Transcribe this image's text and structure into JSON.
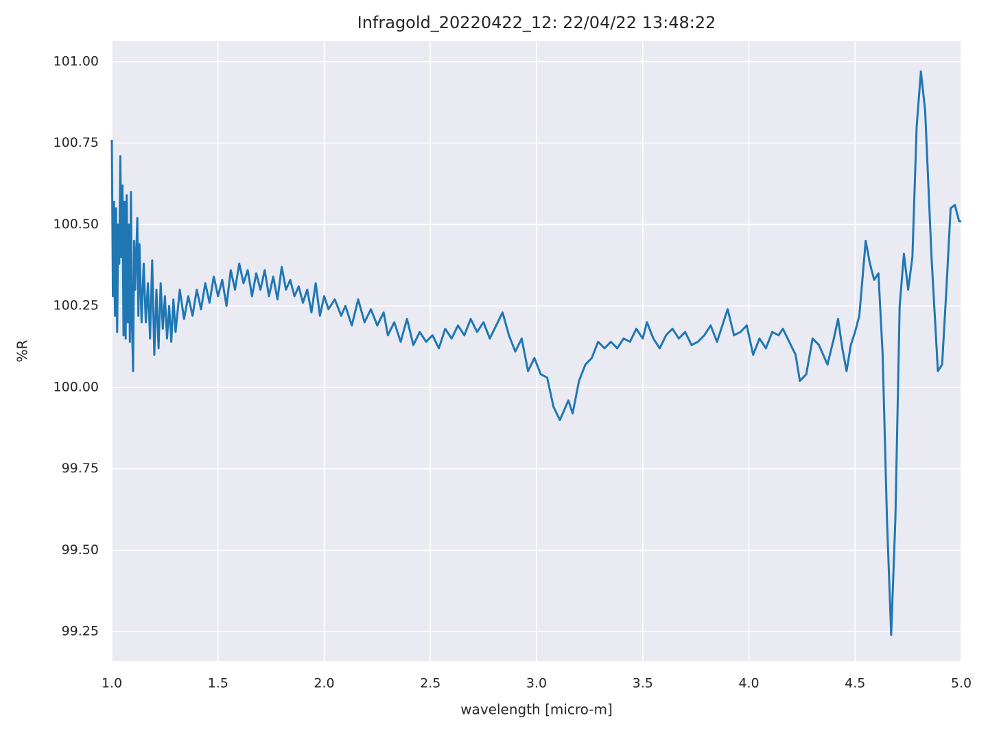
{
  "chart_data": {
    "type": "line",
    "title": "Infragold_20220422_12:  22/04/22 13:48:22",
    "xlabel": "wavelength [micro-m]",
    "ylabel": "%R",
    "xlim": [
      1.0,
      5.0
    ],
    "ylim": [
      99.16,
      101.063
    ],
    "grid": true,
    "background": "#eaeaf2",
    "xticks": [
      {
        "value": 1.0,
        "label": "1.0"
      },
      1.5,
      {
        "value": 2.0,
        "label": "2.0"
      },
      2.5,
      {
        "value": 3.0,
        "label": "3.0"
      },
      3.5,
      {
        "value": 4.0,
        "label": "4.0"
      },
      4.5,
      {
        "value": 5.0,
        "label": "5.0"
      }
    ],
    "yticks": [
      99.25,
      {
        "value": 99.5,
        "label": "99.50"
      },
      99.75,
      {
        "value": 100.0,
        "label": "100.00"
      },
      100.25,
      {
        "value": 100.5,
        "label": "100.50"
      },
      100.75,
      {
        "value": 101.0,
        "label": "101.00"
      }
    ],
    "series": [
      {
        "color": "#1f77b4",
        "x": [
          1.0,
          1.005,
          1.01,
          1.015,
          1.02,
          1.025,
          1.03,
          1.035,
          1.04,
          1.045,
          1.05,
          1.055,
          1.06,
          1.065,
          1.07,
          1.075,
          1.08,
          1.085,
          1.09,
          1.095,
          1.1,
          1.105,
          1.11,
          1.12,
          1.125,
          1.13,
          1.14,
          1.15,
          1.16,
          1.17,
          1.18,
          1.19,
          1.2,
          1.21,
          1.22,
          1.23,
          1.24,
          1.25,
          1.26,
          1.27,
          1.28,
          1.29,
          1.3,
          1.32,
          1.34,
          1.36,
          1.38,
          1.4,
          1.42,
          1.44,
          1.46,
          1.48,
          1.5,
          1.52,
          1.54,
          1.56,
          1.58,
          1.6,
          1.62,
          1.64,
          1.66,
          1.68,
          1.7,
          1.72,
          1.74,
          1.76,
          1.78,
          1.8,
          1.82,
          1.84,
          1.86,
          1.88,
          1.9,
          1.92,
          1.94,
          1.96,
          1.98,
          2.0,
          2.02,
          2.05,
          2.08,
          2.1,
          2.13,
          2.16,
          2.19,
          2.22,
          2.25,
          2.28,
          2.3,
          2.33,
          2.36,
          2.39,
          2.42,
          2.45,
          2.48,
          2.51,
          2.54,
          2.57,
          2.6,
          2.63,
          2.66,
          2.69,
          2.72,
          2.75,
          2.78,
          2.81,
          2.84,
          2.87,
          2.9,
          2.93,
          2.96,
          2.99,
          3.02,
          3.05,
          3.08,
          3.11,
          3.13,
          3.15,
          3.17,
          3.2,
          3.23,
          3.26,
          3.29,
          3.32,
          3.35,
          3.38,
          3.41,
          3.44,
          3.47,
          3.5,
          3.52,
          3.55,
          3.58,
          3.61,
          3.64,
          3.67,
          3.7,
          3.73,
          3.76,
          3.79,
          3.82,
          3.85,
          3.88,
          3.9,
          3.93,
          3.96,
          3.99,
          4.02,
          4.05,
          4.08,
          4.11,
          4.14,
          4.16,
          4.19,
          4.22,
          4.24,
          4.27,
          4.3,
          4.33,
          4.37,
          4.4,
          4.42,
          4.44,
          4.46,
          4.48,
          4.5,
          4.52,
          4.55,
          4.57,
          4.59,
          4.61,
          4.63,
          4.65,
          4.67,
          4.69,
          4.71,
          4.73,
          4.75,
          4.77,
          4.79,
          4.81,
          4.83,
          4.86,
          4.89,
          4.91,
          4.93,
          4.95,
          4.97,
          4.99,
          5.0
        ],
        "values": [
          100.76,
          100.28,
          100.57,
          100.22,
          100.55,
          100.17,
          100.5,
          100.38,
          100.71,
          100.4,
          100.62,
          100.16,
          100.57,
          100.15,
          100.59,
          100.2,
          100.5,
          100.14,
          100.6,
          100.2,
          100.05,
          100.45,
          100.3,
          100.52,
          100.22,
          100.44,
          100.2,
          100.38,
          100.2,
          100.32,
          100.15,
          100.39,
          100.1,
          100.3,
          100.12,
          100.32,
          100.18,
          100.28,
          100.15,
          100.25,
          100.14,
          100.27,
          100.17,
          100.3,
          100.21,
          100.28,
          100.22,
          100.3,
          100.24,
          100.32,
          100.26,
          100.34,
          100.28,
          100.33,
          100.25,
          100.36,
          100.3,
          100.38,
          100.32,
          100.36,
          100.28,
          100.35,
          100.3,
          100.36,
          100.28,
          100.34,
          100.27,
          100.37,
          100.3,
          100.33,
          100.28,
          100.31,
          100.26,
          100.3,
          100.23,
          100.32,
          100.22,
          100.28,
          100.24,
          100.27,
          100.22,
          100.25,
          100.19,
          100.27,
          100.2,
          100.24,
          100.19,
          100.23,
          100.16,
          100.2,
          100.14,
          100.21,
          100.13,
          100.17,
          100.14,
          100.16,
          100.12,
          100.18,
          100.15,
          100.19,
          100.16,
          100.21,
          100.17,
          100.2,
          100.15,
          100.19,
          100.23,
          100.16,
          100.11,
          100.15,
          100.05,
          100.09,
          100.04,
          100.03,
          99.94,
          99.9,
          99.93,
          99.96,
          99.92,
          100.02,
          100.07,
          100.09,
          100.14,
          100.12,
          100.14,
          100.12,
          100.15,
          100.14,
          100.18,
          100.15,
          100.2,
          100.15,
          100.12,
          100.16,
          100.18,
          100.15,
          100.17,
          100.13,
          100.14,
          100.16,
          100.19,
          100.14,
          100.2,
          100.24,
          100.16,
          100.17,
          100.19,
          100.1,
          100.15,
          100.12,
          100.17,
          100.16,
          100.18,
          100.14,
          100.1,
          100.02,
          100.04,
          100.15,
          100.13,
          100.07,
          100.15,
          100.21,
          100.12,
          100.05,
          100.13,
          100.17,
          100.22,
          100.45,
          100.38,
          100.33,
          100.35,
          100.1,
          99.6,
          99.24,
          99.6,
          100.25,
          100.41,
          100.3,
          100.4,
          100.8,
          100.97,
          100.85,
          100.4,
          100.05,
          100.07,
          100.3,
          100.55,
          100.56,
          100.51,
          100.51
        ]
      }
    ]
  }
}
